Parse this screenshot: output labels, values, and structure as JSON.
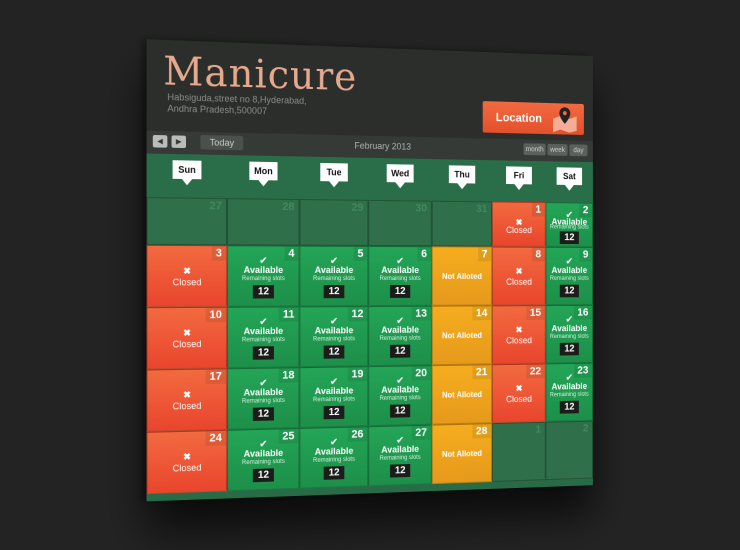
{
  "app": {
    "title": "Manicure",
    "address_line1": "Habsiguda,street no 8,Hyderabad,",
    "address_line2": "Andhra Pradesh,500007",
    "location_label": "Location"
  },
  "toolbar": {
    "prev_icon": "chevron-left-icon",
    "next_icon": "chevron-right-icon",
    "today_label": "Today",
    "month_label": "February 2013",
    "view_month": "month",
    "view_week": "week",
    "view_day": "day"
  },
  "weekdays": [
    "Sun",
    "Mon",
    "Tue",
    "Wed",
    "Thu",
    "Fri",
    "Sat"
  ],
  "labels": {
    "available": "Available",
    "remaining": "Remaining slots",
    "closed": "Closed",
    "not_alloted": "Not Alloted"
  },
  "colors": {
    "available": "#1e9a50",
    "closed": "#ec5233",
    "not_alloted": "#f0a31d"
  },
  "weeks": [
    [
      {
        "day": "27",
        "status": "empty"
      },
      {
        "day": "28",
        "status": "empty"
      },
      {
        "day": "29",
        "status": "empty"
      },
      {
        "day": "30",
        "status": "empty"
      },
      {
        "day": "31",
        "status": "empty"
      },
      {
        "day": "1",
        "status": "closed"
      },
      {
        "day": "2",
        "status": "available",
        "slots": "12"
      }
    ],
    [
      {
        "day": "3",
        "status": "closed"
      },
      {
        "day": "4",
        "status": "available",
        "slots": "12"
      },
      {
        "day": "5",
        "status": "available",
        "slots": "12"
      },
      {
        "day": "6",
        "status": "available",
        "slots": "12"
      },
      {
        "day": "7",
        "status": "not_alloted"
      },
      {
        "day": "8",
        "status": "closed"
      },
      {
        "day": "9",
        "status": "available",
        "slots": "12"
      }
    ],
    [
      {
        "day": "10",
        "status": "closed"
      },
      {
        "day": "11",
        "status": "available",
        "slots": "12"
      },
      {
        "day": "12",
        "status": "available",
        "slots": "12"
      },
      {
        "day": "13",
        "status": "available",
        "slots": "12"
      },
      {
        "day": "14",
        "status": "not_alloted"
      },
      {
        "day": "15",
        "status": "closed"
      },
      {
        "day": "16",
        "status": "available",
        "slots": "12"
      }
    ],
    [
      {
        "day": "17",
        "status": "closed"
      },
      {
        "day": "18",
        "status": "available",
        "slots": "12"
      },
      {
        "day": "19",
        "status": "available",
        "slots": "12"
      },
      {
        "day": "20",
        "status": "available",
        "slots": "12"
      },
      {
        "day": "21",
        "status": "not_alloted"
      },
      {
        "day": "22",
        "status": "closed"
      },
      {
        "day": "23",
        "status": "available",
        "slots": "12"
      }
    ],
    [
      {
        "day": "24",
        "status": "closed"
      },
      {
        "day": "25",
        "status": "available",
        "slots": "12"
      },
      {
        "day": "26",
        "status": "available",
        "slots": "12"
      },
      {
        "day": "27",
        "status": "available",
        "slots": "12"
      },
      {
        "day": "28",
        "status": "not_alloted"
      },
      {
        "day": "1",
        "status": "empty"
      },
      {
        "day": "2",
        "status": "empty"
      }
    ]
  ]
}
